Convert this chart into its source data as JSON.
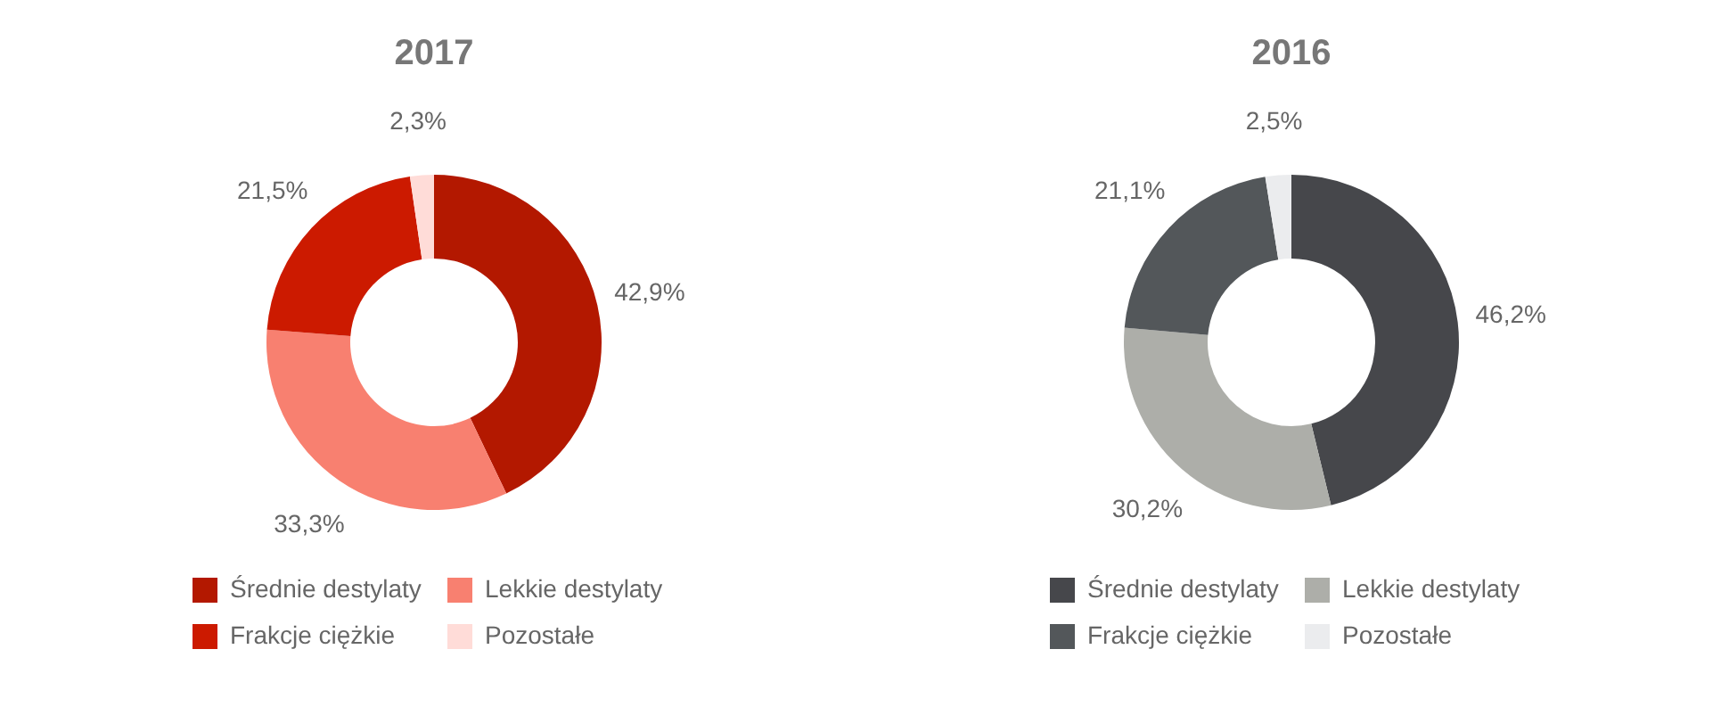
{
  "chart_data": [
    {
      "type": "donut",
      "title": "2017",
      "categories": [
        "Średnie destylaty",
        "Lekkie destylaty",
        "Frakcje ciężkie",
        "Pozostałe"
      ],
      "values": [
        42.9,
        33.3,
        21.5,
        2.3
      ],
      "colors": [
        "#b31800",
        "#f88070",
        "#cc1a00",
        "#ffdcd8"
      ],
      "value_labels": [
        "42,9%",
        "33,3%",
        "21,5%",
        "2,3%"
      ],
      "legend": "bottom"
    },
    {
      "type": "donut",
      "title": "2016",
      "categories": [
        "Średnie destylaty",
        "Lekkie destylaty",
        "Frakcje ciężkie",
        "Pozostałe"
      ],
      "values": [
        46.2,
        30.2,
        21.1,
        2.5
      ],
      "colors": [
        "#46474b",
        "#adaea9",
        "#53575a",
        "#ebecee"
      ],
      "value_labels": [
        "46,2%",
        "30,2%",
        "21,1%",
        "2,5%"
      ],
      "legend": "bottom"
    }
  ]
}
